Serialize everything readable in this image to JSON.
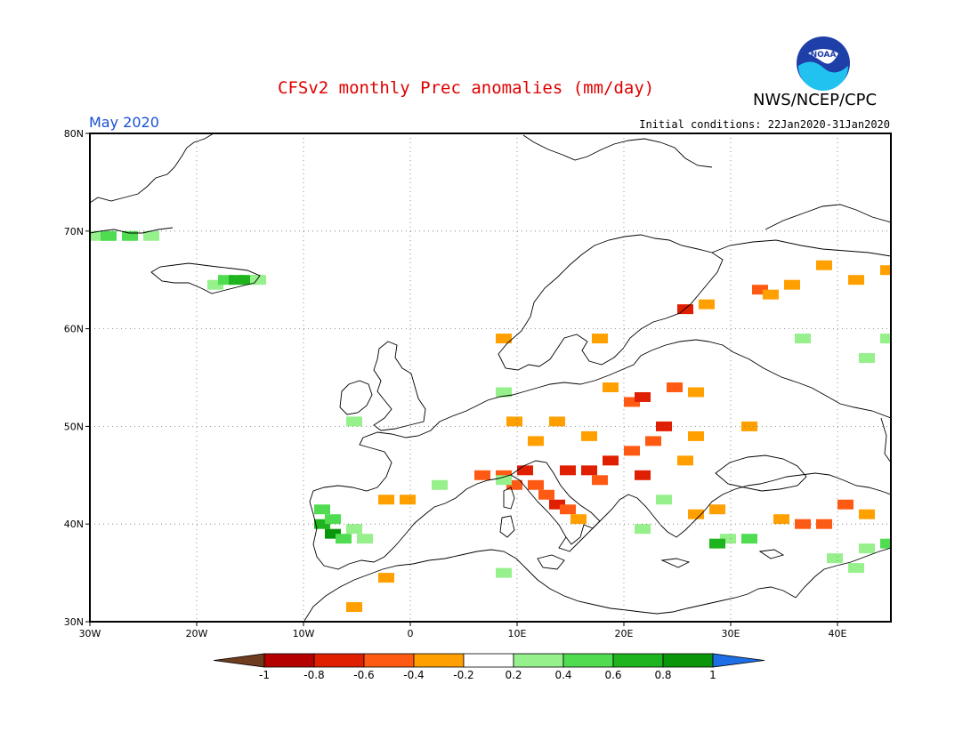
{
  "title": "CFSv2 monthly Prec anomalies (mm/day)",
  "agency": "NWS/NCEP/CPC",
  "logo_text": "NOAA",
  "period": "May 2020",
  "initial_conditions": "Initial conditions: 22Jan2020-31Jan2020",
  "map": {
    "lon_range": [
      -30,
      45
    ],
    "lat_range": [
      30,
      80
    ],
    "lat_ticks": [
      {
        "value": 80,
        "label": "80N"
      },
      {
        "value": 70,
        "label": "70N"
      },
      {
        "value": 60,
        "label": "60N"
      },
      {
        "value": 50,
        "label": "50N"
      },
      {
        "value": 40,
        "label": "40N"
      },
      {
        "value": 30,
        "label": "30N"
      }
    ],
    "lon_ticks": [
      {
        "value": -30,
        "label": "30W"
      },
      {
        "value": -20,
        "label": "20W"
      },
      {
        "value": -10,
        "label": "10W"
      },
      {
        "value": 0,
        "label": "0"
      },
      {
        "value": 10,
        "label": "10E"
      },
      {
        "value": 20,
        "label": "20E"
      },
      {
        "value": 30,
        "label": "30E"
      },
      {
        "value": 40,
        "label": "40E"
      }
    ],
    "grid": "dotted",
    "anomaly_cells": [
      {
        "lon": -30,
        "lat": 69.5,
        "level": "0.2-0.4"
      },
      {
        "lon": -29,
        "lat": 69.5,
        "level": "0.4-0.6"
      },
      {
        "lon": -27,
        "lat": 69.5,
        "level": "0.4-0.6"
      },
      {
        "lon": -25,
        "lat": 69.5,
        "level": "0.2-0.4"
      },
      {
        "lon": -19,
        "lat": 64.5,
        "level": "0.2-0.4"
      },
      {
        "lon": -18,
        "lat": 65.0,
        "level": "0.4-0.6"
      },
      {
        "lon": -17,
        "lat": 65.0,
        "level": "0.6-0.8"
      },
      {
        "lon": -16,
        "lat": 65.0,
        "level": "0.6-0.8"
      },
      {
        "lon": -15,
        "lat": 65.0,
        "level": "0.2-0.4"
      },
      {
        "lon": -9,
        "lat": 41.5,
        "level": "0.4-0.6"
      },
      {
        "lon": -9,
        "lat": 40.0,
        "level": "0.6-0.8"
      },
      {
        "lon": -8,
        "lat": 39.0,
        "level": "0.8-1"
      },
      {
        "lon": -8,
        "lat": 40.5,
        "level": "0.4-0.6"
      },
      {
        "lon": -7,
        "lat": 38.5,
        "level": "0.4-0.6"
      },
      {
        "lon": -6,
        "lat": 39.5,
        "level": "0.2-0.4"
      },
      {
        "lon": -5,
        "lat": 38.5,
        "level": "0.2-0.4"
      },
      {
        "lon": -3,
        "lat": 42.5,
        "level": "-0.4--0.2"
      },
      {
        "lon": -1,
        "lat": 42.5,
        "level": "-0.4--0.2"
      },
      {
        "lon": -3,
        "lat": 34.5,
        "level": "-0.4--0.2"
      },
      {
        "lon": -6,
        "lat": 31.5,
        "level": "-0.4--0.2"
      },
      {
        "lon": 6,
        "lat": 45.0,
        "level": "-0.6--0.4"
      },
      {
        "lon": 8,
        "lat": 45.0,
        "level": "-0.6--0.4"
      },
      {
        "lon": 9,
        "lat": 44.0,
        "level": "-0.6--0.4"
      },
      {
        "lon": 10,
        "lat": 45.5,
        "level": "-0.8--0.6"
      },
      {
        "lon": 11,
        "lat": 44.0,
        "level": "-0.6--0.4"
      },
      {
        "lon": 12,
        "lat": 43.0,
        "level": "-0.6--0.4"
      },
      {
        "lon": 13,
        "lat": 42.0,
        "level": "-0.8--0.6"
      },
      {
        "lon": 14,
        "lat": 41.5,
        "level": "-0.6--0.4"
      },
      {
        "lon": 15,
        "lat": 40.5,
        "level": "-0.4--0.2"
      },
      {
        "lon": 14,
        "lat": 45.5,
        "level": "-0.8--0.6"
      },
      {
        "lon": 16,
        "lat": 45.5,
        "level": "-0.8--0.6"
      },
      {
        "lon": 17,
        "lat": 44.5,
        "level": "-0.6--0.4"
      },
      {
        "lon": 18,
        "lat": 46.5,
        "level": "-0.8--0.6"
      },
      {
        "lon": 20,
        "lat": 47.5,
        "level": "-0.6--0.4"
      },
      {
        "lon": 21,
        "lat": 45.0,
        "level": "-0.8--0.6"
      },
      {
        "lon": 22,
        "lat": 48.5,
        "level": "-0.6--0.4"
      },
      {
        "lon": 23,
        "lat": 50.0,
        "level": "-0.8--0.6"
      },
      {
        "lon": 20,
        "lat": 52.5,
        "level": "-0.6--0.4"
      },
      {
        "lon": 21,
        "lat": 53.0,
        "level": "-0.8--0.6"
      },
      {
        "lon": 24,
        "lat": 54.0,
        "level": "-0.6--0.4"
      },
      {
        "lon": 26,
        "lat": 53.5,
        "level": "-0.4--0.2"
      },
      {
        "lon": 18,
        "lat": 54.0,
        "level": "-0.4--0.2"
      },
      {
        "lon": 13,
        "lat": 50.5,
        "level": "-0.4--0.2"
      },
      {
        "lon": 16,
        "lat": 49.0,
        "level": "-0.4--0.2"
      },
      {
        "lon": 11,
        "lat": 48.5,
        "level": "-0.4--0.2"
      },
      {
        "lon": 9,
        "lat": 50.5,
        "level": "-0.4--0.2"
      },
      {
        "lon": 26,
        "lat": 49.0,
        "level": "-0.4--0.2"
      },
      {
        "lon": 25,
        "lat": 46.5,
        "level": "-0.4--0.2"
      },
      {
        "lon": 25,
        "lat": 62.0,
        "level": "-0.8--0.6"
      },
      {
        "lon": 27,
        "lat": 62.5,
        "level": "-0.4--0.2"
      },
      {
        "lon": 32,
        "lat": 64.0,
        "level": "-0.6--0.4"
      },
      {
        "lon": 33,
        "lat": 63.5,
        "level": "-0.4--0.2"
      },
      {
        "lon": 35,
        "lat": 64.5,
        "level": "-0.4--0.2"
      },
      {
        "lon": 38,
        "lat": 66.5,
        "level": "-0.4--0.2"
      },
      {
        "lon": 41,
        "lat": 65.0,
        "level": "-0.4--0.2"
      },
      {
        "lon": 44,
        "lat": 66.0,
        "level": "-0.4--0.2"
      },
      {
        "lon": 8,
        "lat": 59.0,
        "level": "-0.4--0.2"
      },
      {
        "lon": 17,
        "lat": 59.0,
        "level": "-0.4--0.2"
      },
      {
        "lon": 36,
        "lat": 59.0,
        "level": "0.2-0.4"
      },
      {
        "lon": 42,
        "lat": 57.0,
        "level": "0.2-0.4"
      },
      {
        "lon": 44,
        "lat": 59.0,
        "level": "0.2-0.4"
      },
      {
        "lon": 31,
        "lat": 50.0,
        "level": "-0.4--0.2"
      },
      {
        "lon": 26,
        "lat": 41.0,
        "level": "-0.4--0.2"
      },
      {
        "lon": 28,
        "lat": 41.5,
        "level": "-0.4--0.2"
      },
      {
        "lon": 34,
        "lat": 40.5,
        "level": "-0.4--0.2"
      },
      {
        "lon": 36,
        "lat": 40.0,
        "level": "-0.6--0.4"
      },
      {
        "lon": 38,
        "lat": 40.0,
        "level": "-0.6--0.4"
      },
      {
        "lon": 40,
        "lat": 42.0,
        "level": "-0.6--0.4"
      },
      {
        "lon": 42,
        "lat": 41.0,
        "level": "-0.4--0.2"
      },
      {
        "lon": 29,
        "lat": 38.5,
        "level": "0.2-0.4"
      },
      {
        "lon": 28,
        "lat": 38.0,
        "level": "0.6-0.8"
      },
      {
        "lon": 31,
        "lat": 38.5,
        "level": "0.4-0.6"
      },
      {
        "lon": 42,
        "lat": 37.5,
        "level": "0.2-0.4"
      },
      {
        "lon": 44,
        "lat": 38.0,
        "level": "0.4-0.6"
      },
      {
        "lon": 39,
        "lat": 36.5,
        "level": "0.2-0.4"
      },
      {
        "lon": 41,
        "lat": 35.5,
        "level": "0.2-0.4"
      },
      {
        "lon": 21,
        "lat": 39.5,
        "level": "0.2-0.4"
      },
      {
        "lon": 23,
        "lat": 42.5,
        "level": "0.2-0.4"
      },
      {
        "lon": 8,
        "lat": 35.0,
        "level": "0.2-0.4"
      },
      {
        "lon": 8,
        "lat": 44.5,
        "level": "0.2-0.4"
      },
      {
        "lon": 2,
        "lat": 44.0,
        "level": "0.2-0.4"
      },
      {
        "lon": -6,
        "lat": 50.5,
        "level": "0.2-0.4"
      },
      {
        "lon": 8,
        "lat": 53.5,
        "level": "0.2-0.4"
      }
    ],
    "colors": {
      "-1--0.8": "#b50000",
      "-0.8--0.6": "#e01e00",
      "-0.6--0.4": "#ff5a14",
      "-0.4--0.2": "#ffa000",
      "0.2-0.4": "#96f08c",
      "0.4-0.6": "#50dc50",
      "0.6-0.8": "#1eb41e",
      "0.8-1": "#0a960a"
    }
  },
  "colorbar": {
    "labels": [
      "-1",
      "-0.8",
      "-0.6",
      "-0.4",
      "-0.2",
      "0.2",
      "0.4",
      "0.6",
      "0.8",
      "1"
    ],
    "low_extend_color": "#6e3c1e",
    "high_extend_color": "#1e6ee6",
    "colors": [
      "#b50000",
      "#e01e00",
      "#ff5a14",
      "#ffa000",
      "#ffffff",
      "#96f08c",
      "#50dc50",
      "#1eb41e",
      "#0a960a"
    ]
  }
}
